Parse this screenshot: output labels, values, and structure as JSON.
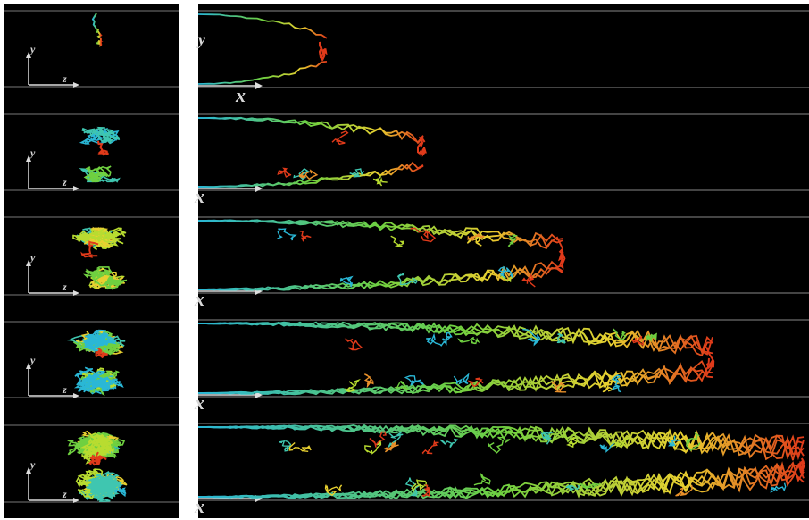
{
  "left_panels": [
    {
      "y_label": "y",
      "z_label": "z"
    },
    {
      "y_label": "y",
      "z_label": "z"
    },
    {
      "y_label": "y",
      "z_label": "z"
    },
    {
      "y_label": "y",
      "z_label": "z"
    },
    {
      "y_label": "y",
      "z_label": "z"
    }
  ],
  "right_panels": [
    {
      "y_label": "y",
      "x_label": "x"
    },
    {
      "x_label": "x"
    },
    {
      "x_label": "x"
    },
    {
      "x_label": "x"
    },
    {
      "x_label": "x"
    }
  ]
}
